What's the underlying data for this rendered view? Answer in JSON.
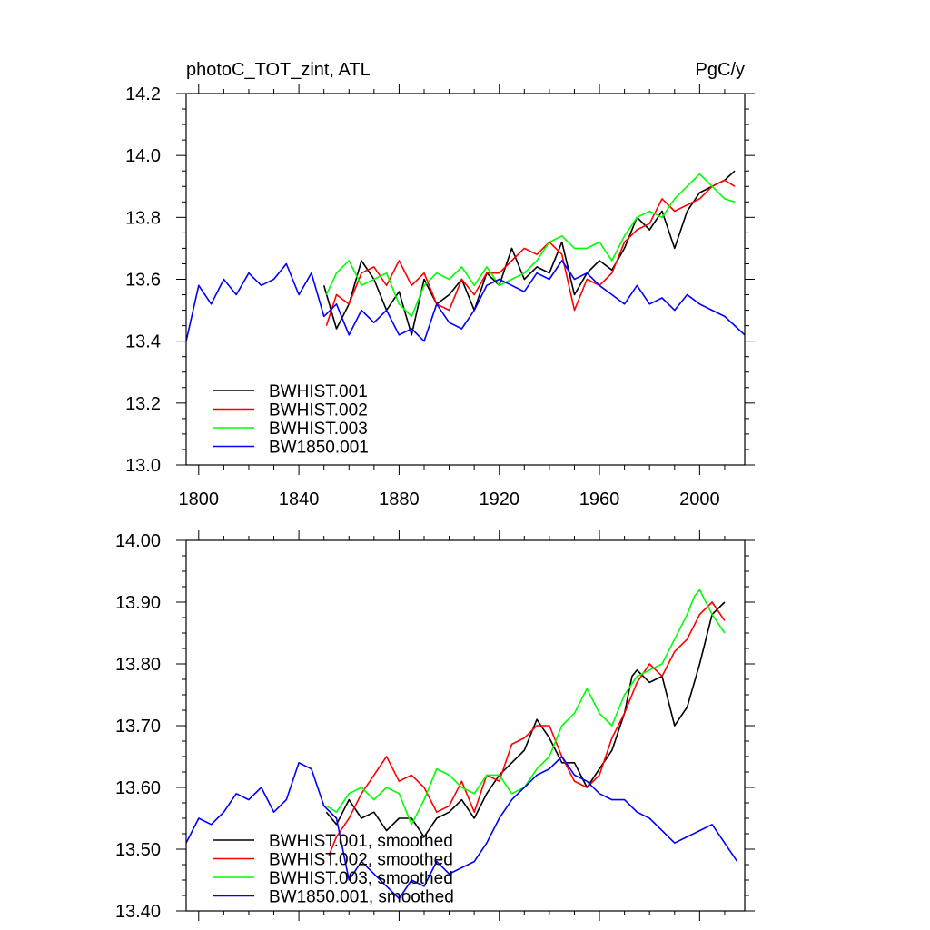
{
  "chart_data": [
    {
      "type": "line",
      "title_left": "photoC_TOT_zint, ATL",
      "title_right": "PgC/y",
      "xlim": [
        1795,
        2018
      ],
      "ylim": [
        13.0,
        14.2
      ],
      "x_ticks": [
        1800,
        1840,
        1880,
        1920,
        1960,
        2000
      ],
      "x_tick_labels": [
        "1800",
        "1840",
        "1880",
        "1920",
        "1960",
        "2000"
      ],
      "y_ticks": [
        13.0,
        13.2,
        13.4,
        13.6,
        13.8,
        14.0,
        14.2
      ],
      "y_tick_labels": [
        "13.0",
        "13.2",
        "13.4",
        "13.6",
        "13.8",
        "14.0",
        "14.2"
      ],
      "legend_position": "bottom-left",
      "series": [
        {
          "name": "BWHIST.001",
          "color": "#000000",
          "x": [
            1850,
            1855,
            1860,
            1865,
            1870,
            1875,
            1880,
            1885,
            1890,
            1895,
            1900,
            1905,
            1910,
            1915,
            1920,
            1925,
            1930,
            1935,
            1940,
            1945,
            1950,
            1955,
            1960,
            1965,
            1970,
            1975,
            1980,
            1985,
            1990,
            1995,
            2000,
            2005,
            2010,
            2014
          ],
          "y": [
            13.58,
            13.44,
            13.52,
            13.66,
            13.6,
            13.5,
            13.56,
            13.42,
            13.6,
            13.52,
            13.55,
            13.6,
            13.5,
            13.62,
            13.58,
            13.7,
            13.6,
            13.64,
            13.62,
            13.72,
            13.55,
            13.62,
            13.66,
            13.63,
            13.7,
            13.8,
            13.76,
            13.82,
            13.7,
            13.82,
            13.88,
            13.9,
            13.92,
            13.95
          ]
        },
        {
          "name": "BWHIST.002",
          "color": "#ff0000",
          "x": [
            1851,
            1855,
            1860,
            1865,
            1870,
            1875,
            1880,
            1885,
            1890,
            1895,
            1900,
            1905,
            1910,
            1915,
            1920,
            1925,
            1930,
            1935,
            1940,
            1945,
            1950,
            1955,
            1960,
            1965,
            1970,
            1975,
            1980,
            1985,
            1990,
            1995,
            2000,
            2005,
            2010,
            2014
          ],
          "y": [
            13.45,
            13.55,
            13.52,
            13.62,
            13.64,
            13.58,
            13.66,
            13.58,
            13.62,
            13.52,
            13.5,
            13.6,
            13.55,
            13.62,
            13.62,
            13.66,
            13.7,
            13.68,
            13.72,
            13.68,
            13.5,
            13.6,
            13.58,
            13.62,
            13.72,
            13.76,
            13.78,
            13.86,
            13.82,
            13.84,
            13.86,
            13.9,
            13.92,
            13.9
          ]
        },
        {
          "name": "BWHIST.003",
          "color": "#00ff00",
          "x": [
            1851,
            1855,
            1860,
            1865,
            1870,
            1875,
            1880,
            1885,
            1890,
            1895,
            1900,
            1905,
            1910,
            1915,
            1920,
            1925,
            1930,
            1935,
            1940,
            1945,
            1950,
            1955,
            1960,
            1965,
            1970,
            1975,
            1980,
            1985,
            1990,
            1995,
            2000,
            2005,
            2010,
            2014
          ],
          "y": [
            13.55,
            13.62,
            13.66,
            13.58,
            13.6,
            13.62,
            13.52,
            13.48,
            13.58,
            13.62,
            13.6,
            13.64,
            13.58,
            13.64,
            13.58,
            13.6,
            13.62,
            13.66,
            13.72,
            13.74,
            13.7,
            13.7,
            13.72,
            13.66,
            13.74,
            13.8,
            13.82,
            13.8,
            13.86,
            13.9,
            13.94,
            13.9,
            13.86,
            13.85
          ]
        },
        {
          "name": "BW1850.001",
          "color": "#0000ff",
          "x": [
            1795,
            1800,
            1805,
            1810,
            1815,
            1820,
            1825,
            1830,
            1835,
            1840,
            1845,
            1850,
            1855,
            1860,
            1865,
            1870,
            1875,
            1880,
            1885,
            1890,
            1895,
            1900,
            1905,
            1910,
            1915,
            1920,
            1925,
            1930,
            1935,
            1940,
            1945,
            1950,
            1955,
            1960,
            1965,
            1970,
            1975,
            1980,
            1985,
            1990,
            1995,
            2000,
            2005,
            2010,
            2014,
            2018
          ],
          "y": [
            13.4,
            13.58,
            13.52,
            13.6,
            13.55,
            13.62,
            13.58,
            13.6,
            13.65,
            13.55,
            13.62,
            13.48,
            13.52,
            13.42,
            13.5,
            13.46,
            13.5,
            13.42,
            13.44,
            13.4,
            13.52,
            13.46,
            13.44,
            13.5,
            13.58,
            13.6,
            13.58,
            13.56,
            13.62,
            13.6,
            13.66,
            13.6,
            13.62,
            13.58,
            13.55,
            13.52,
            13.58,
            13.52,
            13.54,
            13.5,
            13.55,
            13.52,
            13.5,
            13.48,
            13.45,
            13.42
          ]
        }
      ]
    },
    {
      "type": "line",
      "xlim": [
        1795,
        2018
      ],
      "ylim": [
        13.4,
        14.0
      ],
      "x_ticks": [
        1800,
        1840,
        1880,
        1920,
        1960,
        2000
      ],
      "y_ticks": [
        13.4,
        13.5,
        13.6,
        13.7,
        13.8,
        13.9,
        14.0
      ],
      "y_tick_labels": [
        "13.40",
        "13.50",
        "13.60",
        "13.70",
        "13.80",
        "13.90",
        "14.00"
      ],
      "legend_position": "bottom-left",
      "series": [
        {
          "name": "BWHIST.001, smoothed",
          "color": "#000000",
          "x": [
            1851,
            1855,
            1860,
            1865,
            1870,
            1875,
            1880,
            1885,
            1890,
            1895,
            1900,
            1905,
            1910,
            1915,
            1920,
            1925,
            1930,
            1935,
            1940,
            1945,
            1950,
            1955,
            1960,
            1965,
            1970,
            1973,
            1975,
            1980,
            1985,
            1990,
            1995,
            2000,
            2005,
            2010
          ],
          "y": [
            13.56,
            13.54,
            13.58,
            13.55,
            13.56,
            13.53,
            13.55,
            13.55,
            13.52,
            13.55,
            13.56,
            13.58,
            13.55,
            13.59,
            13.62,
            13.64,
            13.66,
            13.71,
            13.68,
            13.64,
            13.64,
            13.6,
            13.63,
            13.66,
            13.72,
            13.78,
            13.79,
            13.77,
            13.78,
            13.7,
            13.73,
            13.8,
            13.88,
            13.9
          ]
        },
        {
          "name": "BWHIST.002, smoothed",
          "color": "#ff0000",
          "x": [
            1852,
            1855,
            1860,
            1865,
            1870,
            1875,
            1880,
            1885,
            1890,
            1895,
            1900,
            1905,
            1910,
            1915,
            1920,
            1925,
            1930,
            1935,
            1940,
            1945,
            1950,
            1955,
            1960,
            1965,
            1970,
            1975,
            1980,
            1985,
            1990,
            1995,
            2000,
            2005,
            2010
          ],
          "y": [
            13.49,
            13.52,
            13.55,
            13.59,
            13.62,
            13.65,
            13.61,
            13.62,
            13.6,
            13.56,
            13.57,
            13.61,
            13.56,
            13.62,
            13.61,
            13.67,
            13.68,
            13.7,
            13.7,
            13.65,
            13.61,
            13.6,
            13.62,
            13.68,
            13.72,
            13.77,
            13.8,
            13.78,
            13.82,
            13.84,
            13.88,
            13.9,
            13.87
          ]
        },
        {
          "name": "BWHIST.003, smoothed",
          "color": "#00ff00",
          "x": [
            1851,
            1855,
            1860,
            1865,
            1870,
            1875,
            1880,
            1885,
            1890,
            1895,
            1900,
            1905,
            1910,
            1915,
            1920,
            1925,
            1930,
            1935,
            1940,
            1945,
            1950,
            1955,
            1960,
            1965,
            1970,
            1975,
            1980,
            1985,
            1990,
            1995,
            1998,
            2000,
            2005,
            2010
          ],
          "y": [
            13.57,
            13.56,
            13.59,
            13.6,
            13.58,
            13.6,
            13.59,
            13.54,
            13.58,
            13.63,
            13.62,
            13.6,
            13.59,
            13.62,
            13.62,
            13.59,
            13.6,
            13.63,
            13.65,
            13.7,
            13.72,
            13.76,
            13.72,
            13.7,
            13.75,
            13.78,
            13.79,
            13.8,
            13.84,
            13.88,
            13.91,
            13.92,
            13.88,
            13.85
          ]
        },
        {
          "name": "BW1850.001, smoothed",
          "color": "#0000ff",
          "x": [
            1795,
            1800,
            1805,
            1810,
            1815,
            1820,
            1825,
            1830,
            1835,
            1840,
            1845,
            1850,
            1855,
            1860,
            1865,
            1870,
            1875,
            1880,
            1885,
            1890,
            1895,
            1900,
            1905,
            1910,
            1915,
            1920,
            1925,
            1930,
            1935,
            1940,
            1945,
            1950,
            1955,
            1960,
            1965,
            1970,
            1975,
            1980,
            1985,
            1990,
            1995,
            2000,
            2005,
            2010,
            2015
          ],
          "y": [
            13.51,
            13.55,
            13.54,
            13.56,
            13.59,
            13.58,
            13.6,
            13.56,
            13.58,
            13.64,
            13.63,
            13.57,
            13.55,
            13.45,
            13.48,
            13.46,
            13.44,
            13.42,
            13.45,
            13.44,
            13.48,
            13.46,
            13.47,
            13.48,
            13.51,
            13.55,
            13.58,
            13.6,
            13.62,
            13.63,
            13.65,
            13.62,
            13.61,
            13.59,
            13.58,
            13.58,
            13.56,
            13.55,
            13.53,
            13.51,
            13.52,
            13.53,
            13.54,
            13.51,
            13.48
          ]
        }
      ]
    }
  ]
}
